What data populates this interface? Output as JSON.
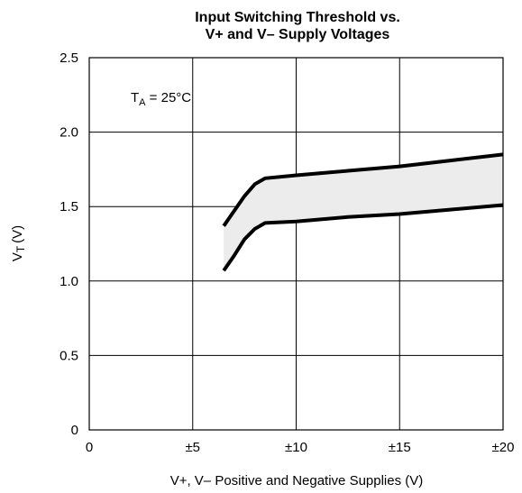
{
  "chart_data": {
    "type": "line",
    "title": "Input Switching Threshold vs.",
    "subtitle": "V+ and V– Supply Voltages",
    "xlabel": "V+, V– Positive and Negative Supplies (V)",
    "ylabel": "V",
    "ylabel_sub": "T",
    "ylabel_unit": "(V)",
    "xlim": [
      0,
      20
    ],
    "ylim": [
      0,
      2.5
    ],
    "x_ticks": [
      0,
      5,
      10,
      15,
      20
    ],
    "x_tick_labels": [
      "0",
      "±5",
      "±10",
      "±15",
      "±20"
    ],
    "y_ticks": [
      0,
      0.5,
      1.0,
      1.5,
      2.0,
      2.5
    ],
    "y_tick_labels": [
      "0",
      "0.5",
      "1.0",
      "1.5",
      "2.0",
      "2.5"
    ],
    "grid": true,
    "annotation": {
      "main": "T",
      "sub": "A",
      "rest": " = 25°C"
    },
    "band_fill": "#ececec",
    "line_color": "#000000",
    "series": [
      {
        "x": [
          6.5,
          7.0,
          7.5,
          8.0,
          8.5,
          10,
          12.5,
          15,
          17.5,
          20
        ],
        "y": [
          1.37,
          1.47,
          1.57,
          1.65,
          1.69,
          1.71,
          1.74,
          1.77,
          1.81,
          1.85
        ]
      },
      {
        "x": [
          6.5,
          7.0,
          7.5,
          8.0,
          8.5,
          10,
          12.5,
          15,
          17.5,
          20
        ],
        "y": [
          1.07,
          1.17,
          1.28,
          1.35,
          1.39,
          1.4,
          1.43,
          1.45,
          1.48,
          1.51
        ]
      }
    ]
  }
}
